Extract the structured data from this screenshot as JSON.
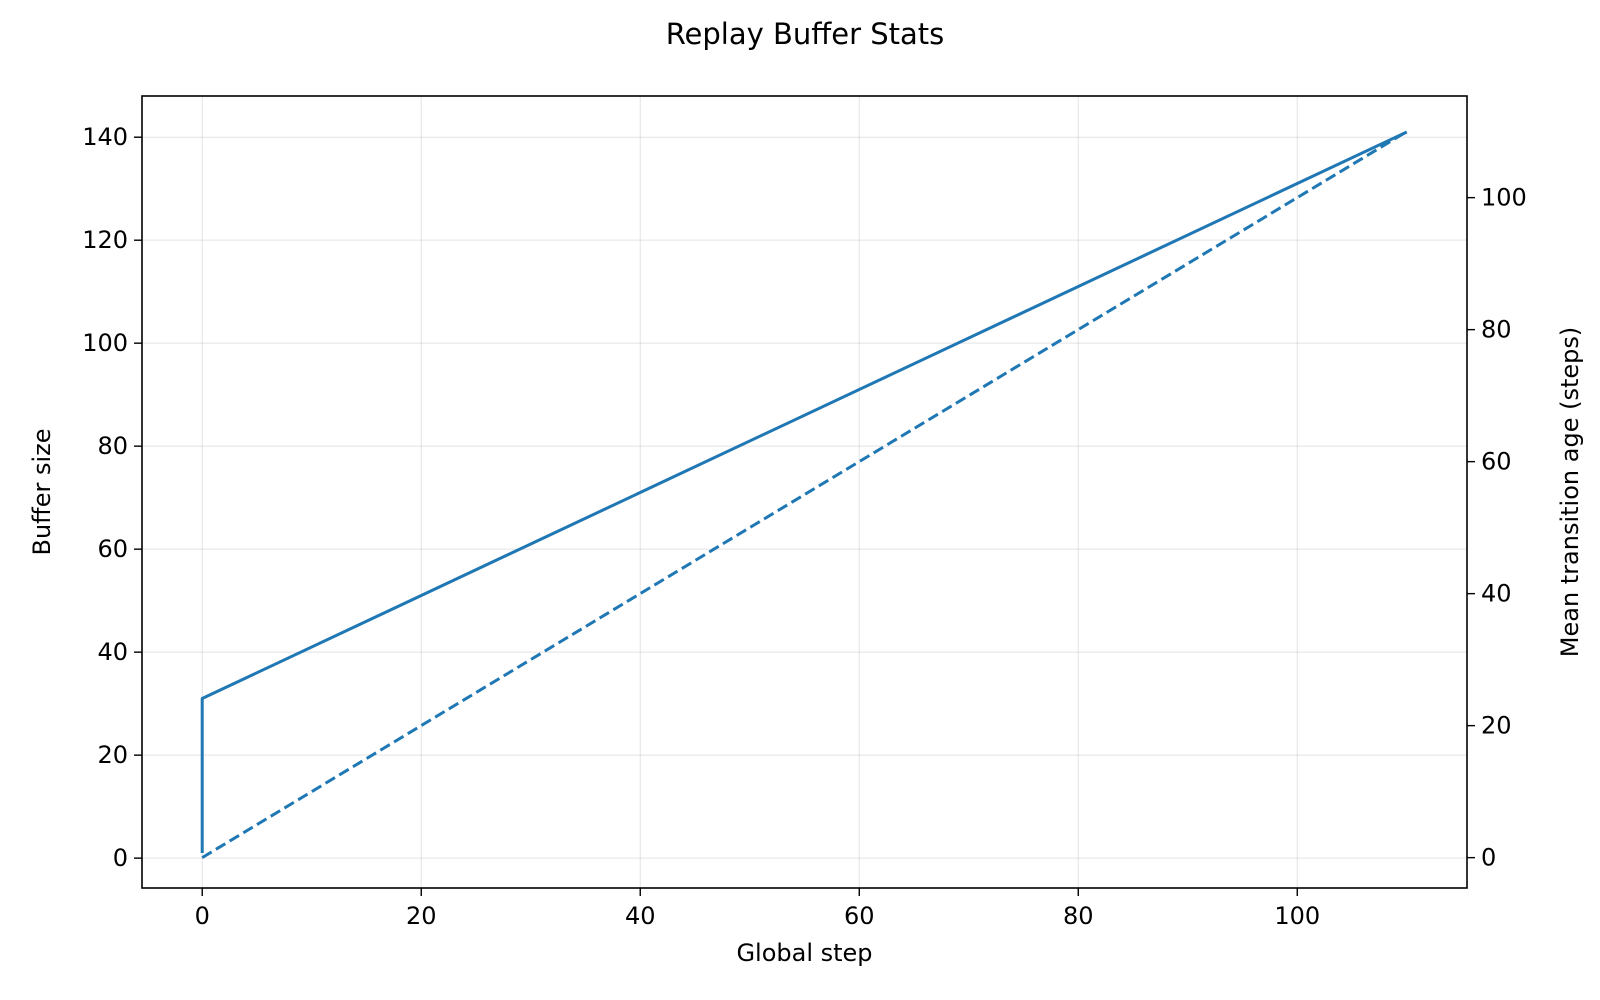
{
  "chart_data": {
    "type": "line",
    "title": "Replay Buffer Stats",
    "xlabel": "Global step",
    "ylabel": "Buffer size",
    "ylabel_right": "Mean transition age (steps)",
    "xlim": [
      -5.5,
      115.5
    ],
    "ylim": [
      -5.8,
      148
    ],
    "ylim_right": [
      -4.6,
      115.4
    ],
    "x_ticks": [
      0,
      20,
      40,
      60,
      80,
      100
    ],
    "y_ticks": [
      0,
      20,
      40,
      60,
      80,
      100,
      120,
      140
    ],
    "y_ticks_right": [
      0,
      20,
      40,
      60,
      80,
      100
    ],
    "grid": true,
    "series": [
      {
        "axis": "left",
        "style": "solid",
        "color": "#1f77b4",
        "x": [
          0,
          0,
          110
        ],
        "values": [
          1,
          31,
          141
        ]
      },
      {
        "axis": "right",
        "style": "dashed",
        "color": "#1f77b4",
        "x": [
          0,
          110
        ],
        "values": [
          0,
          110
        ]
      }
    ]
  }
}
